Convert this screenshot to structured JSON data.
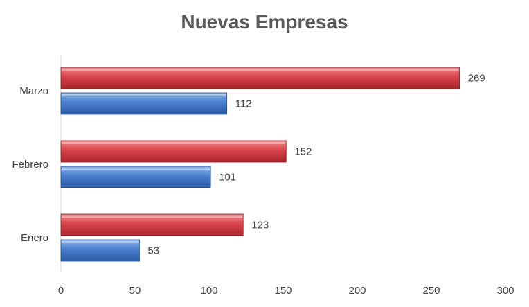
{
  "chart_data": {
    "type": "bar",
    "orientation": "horizontal",
    "title": "Nuevas Empresas",
    "xlabel": "",
    "ylabel": "",
    "categories": [
      "Enero",
      "Febrero",
      "Marzo"
    ],
    "series": [
      {
        "color": "#d0363c",
        "values": [
          123,
          152,
          269
        ]
      },
      {
        "color": "#3a72c4",
        "values": [
          53,
          101,
          112
        ]
      }
    ],
    "xlim": [
      0,
      300
    ],
    "xticks": [
      0,
      50,
      100,
      150,
      200,
      250,
      300
    ],
    "grid": false,
    "legend": "none"
  }
}
